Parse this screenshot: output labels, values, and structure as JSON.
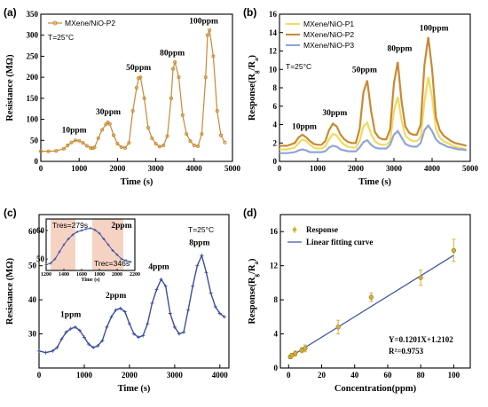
{
  "chart_data": [
    {
      "id": "a",
      "panel_label": "(a)",
      "type": "line",
      "xlabel": "Time (s)",
      "ylabel": "Resistance (MΩ)",
      "xlim": [
        0,
        5000
      ],
      "ylim": [
        0,
        350
      ],
      "xticks": [
        "0",
        "1000",
        "2000",
        "3000",
        "4000",
        "5000"
      ],
      "yticks": [
        "0",
        "50",
        "100",
        "150",
        "200",
        "250",
        "300",
        "350"
      ],
      "temperature": "T=25°C",
      "legend_position": "top-left",
      "series": [
        {
          "name": "MXene/NiO-P2",
          "color": "#c98a33",
          "marker": "circle-open",
          "x": [
            0,
            200,
            400,
            600,
            700,
            800,
            900,
            1000,
            1100,
            1200,
            1300,
            1350,
            1400,
            1500,
            1600,
            1700,
            1750,
            1800,
            1900,
            2000,
            2100,
            2200,
            2300,
            2400,
            2500,
            2550,
            2600,
            2700,
            2800,
            2900,
            3000,
            3100,
            3200,
            3300,
            3400,
            3450,
            3500,
            3600,
            3700,
            3800,
            3900,
            4000,
            4100,
            4200,
            4300,
            4350,
            4400,
            4500,
            4600,
            4700,
            4800
          ],
          "y": [
            24,
            24,
            25,
            30,
            38,
            45,
            50,
            49,
            44,
            37,
            32,
            31,
            33,
            55,
            75,
            88,
            93,
            89,
            62,
            42,
            34,
            32,
            44,
            120,
            175,
            198,
            200,
            150,
            80,
            55,
            42,
            35,
            38,
            60,
            150,
            220,
            236,
            200,
            110,
            65,
            48,
            38,
            36,
            65,
            200,
            300,
            312,
            250,
            120,
            62,
            45
          ]
        }
      ],
      "annotations": [
        "10ppm",
        "30ppm",
        "50ppm",
        "80ppm",
        "100ppm"
      ]
    },
    {
      "id": "b",
      "panel_label": "(b)",
      "type": "line",
      "xlabel": "Time (s)",
      "ylabel": "Response(Rg/Ra)",
      "xlim": [
        0,
        5000
      ],
      "ylim": [
        0,
        16
      ],
      "xticks": [
        "0",
        "1000",
        "2000",
        "3000",
        "4000",
        "5000"
      ],
      "yticks": [
        "0",
        "2",
        "4",
        "6",
        "8",
        "10",
        "12",
        "14",
        "16"
      ],
      "temperature": "T=25°C",
      "legend_position": "top-left",
      "series": [
        {
          "name": "MXene/NiO-P1",
          "color": "#f2da5f",
          "x": [
            0,
            200,
            400,
            500,
            600,
            700,
            800,
            900,
            1000,
            1100,
            1200,
            1300,
            1400,
            1500,
            1600,
            1700,
            1800,
            1900,
            2000,
            2100,
            2200,
            2300,
            2400,
            2500,
            2600,
            2700,
            2800,
            2900,
            3000,
            3100,
            3200,
            3300,
            3400,
            3500,
            3600,
            3700,
            3800,
            3900,
            4000,
            4100,
            4200,
            4300,
            4400,
            4500,
            4600,
            4700,
            4800,
            4900
          ],
          "y": [
            1.3,
            1.3,
            1.5,
            2.0,
            2.4,
            2.2,
            1.8,
            1.5,
            1.4,
            1.4,
            1.6,
            2.4,
            3.0,
            2.8,
            2.2,
            1.8,
            1.6,
            1.5,
            1.5,
            2.2,
            3.8,
            4.2,
            3.0,
            2.2,
            1.9,
            1.8,
            1.8,
            2.2,
            5.5,
            7.0,
            4.5,
            2.8,
            2.4,
            2.2,
            2.2,
            2.6,
            6.5,
            9.2,
            7.0,
            3.5,
            2.6,
            2.2,
            2.0,
            1.8,
            1.6,
            1.5,
            1.4,
            1.3
          ]
        },
        {
          "name": "MXene/NiO-P2",
          "color": "#c98a33",
          "x": [
            0,
            200,
            400,
            500,
            600,
            700,
            800,
            900,
            1000,
            1100,
            1200,
            1300,
            1400,
            1500,
            1600,
            1700,
            1800,
            1900,
            2000,
            2100,
            2200,
            2300,
            2400,
            2500,
            2600,
            2700,
            2800,
            2900,
            3000,
            3100,
            3200,
            3300,
            3400,
            3500,
            3600,
            3700,
            3800,
            3900,
            4000,
            4100,
            4200,
            4300,
            4400,
            4500,
            4600,
            4700,
            4800,
            4900
          ],
          "y": [
            1.7,
            1.7,
            2.0,
            2.6,
            2.9,
            2.6,
            2.2,
            1.9,
            1.8,
            1.8,
            2.2,
            3.4,
            4.1,
            3.8,
            2.9,
            2.4,
            2.1,
            2.0,
            2.0,
            3.5,
            7.5,
            8.8,
            5.5,
            3.2,
            2.6,
            2.4,
            2.4,
            3.5,
            8.5,
            10.8,
            6.5,
            3.8,
            3.1,
            2.9,
            2.9,
            4.0,
            10.5,
            13.5,
            10.0,
            4.8,
            3.4,
            2.8,
            2.5,
            2.2,
            2.0,
            1.9,
            1.8,
            1.7
          ]
        },
        {
          "name": "MXene/NiO-P3",
          "color": "#8fa6d6",
          "x": [
            0,
            200,
            400,
            500,
            600,
            700,
            800,
            900,
            1000,
            1100,
            1200,
            1300,
            1400,
            1500,
            1600,
            1700,
            1800,
            1900,
            2000,
            2100,
            2200,
            2300,
            2400,
            2500,
            2600,
            2700,
            2800,
            2900,
            3000,
            3100,
            3200,
            3300,
            3400,
            3500,
            3600,
            3700,
            3800,
            3900,
            4000,
            4100,
            4200,
            4300,
            4400,
            4500,
            4600,
            4700,
            4800,
            4900
          ],
          "y": [
            0.9,
            0.9,
            1.0,
            1.2,
            1.3,
            1.2,
            1.0,
            1.0,
            1.0,
            1.0,
            1.1,
            1.5,
            1.7,
            1.6,
            1.3,
            1.2,
            1.1,
            1.1,
            1.1,
            1.5,
            2.1,
            2.3,
            1.8,
            1.5,
            1.4,
            1.4,
            1.4,
            1.8,
            2.9,
            3.3,
            2.6,
            1.9,
            1.7,
            1.6,
            1.6,
            2.0,
            3.4,
            3.9,
            3.3,
            2.4,
            2.0,
            1.8,
            1.6,
            1.5,
            1.4,
            1.3,
            1.3,
            1.2
          ]
        }
      ],
      "annotations": [
        "10ppm",
        "30ppm",
        "50ppm",
        "80ppm",
        "100ppm"
      ]
    },
    {
      "id": "c",
      "panel_label": "(c)",
      "type": "line",
      "xlabel": "Time (s)",
      "ylabel": "Resistance (MΩ)",
      "xlim": [
        0,
        4200
      ],
      "ylim": [
        20,
        65
      ],
      "xticks": [
        "0",
        "1000",
        "2000",
        "3000",
        "4000"
      ],
      "yticks": [
        "30",
        "40",
        "50",
        "60"
      ],
      "temperature": "T=25°C",
      "series": [
        {
          "name": "",
          "color": "#3b4ea0",
          "marker": "plus",
          "x": [
            0,
            150,
            300,
            400,
            500,
            600,
            700,
            800,
            900,
            1000,
            1100,
            1200,
            1300,
            1400,
            1500,
            1600,
            1700,
            1800,
            1900,
            2000,
            2100,
            2200,
            2300,
            2400,
            2500,
            2600,
            2700,
            2800,
            2900,
            3000,
            3100,
            3200,
            3300,
            3400,
            3500,
            3600,
            3700,
            3800,
            3900,
            4000,
            4100
          ],
          "y": [
            25,
            24.5,
            25,
            26,
            28.5,
            30.5,
            31.5,
            32,
            31,
            29,
            27,
            26,
            26.5,
            28,
            32,
            35,
            37,
            37.5,
            36.5,
            33,
            30,
            29,
            29.5,
            33,
            39,
            43,
            46,
            44,
            36,
            32,
            30,
            30.5,
            37,
            44,
            50,
            53,
            48,
            42,
            38,
            36,
            35
          ]
        }
      ],
      "annotations": [
        "1ppm",
        "2ppm",
        "4ppm",
        "8ppm"
      ],
      "inset": {
        "xlim": [
          1200,
          2200
        ],
        "ylim": [
          46,
          64
        ],
        "xticks": [
          "1200",
          "1400",
          "1600",
          "1800",
          "2000",
          "2200"
        ],
        "yticks": [
          "50",
          "60"
        ],
        "xlabel": "Time (s)",
        "label": "2ppm",
        "tres": "Tres=279s",
        "trec": "Trec=346s",
        "shade_color": "#f6d2c2",
        "x": [
          1200,
          1250,
          1300,
          1350,
          1400,
          1450,
          1500,
          1550,
          1600,
          1650,
          1700,
          1750,
          1800,
          1850,
          1900,
          1950,
          2000,
          2050,
          2100,
          2150
        ],
        "y": [
          48,
          48.5,
          50,
          52.5,
          55,
          57,
          58.5,
          59.5,
          60,
          60.5,
          60.8,
          60.2,
          59,
          57,
          55,
          53,
          51.5,
          50,
          49.5,
          49
        ]
      }
    },
    {
      "id": "d",
      "panel_label": "(d)",
      "type": "scatter",
      "xlabel": "Concentration(ppm)",
      "ylabel": "Response(Rg/Ra)",
      "xlim": [
        -5,
        110
      ],
      "ylim": [
        0,
        18
      ],
      "xticks": [
        "0",
        "20",
        "40",
        "60",
        "80",
        "100"
      ],
      "yticks": [
        "0",
        "4",
        "8",
        "12",
        "16"
      ],
      "legend_position": "top-left",
      "series": [
        {
          "name": "Response",
          "color": "#d4b23a",
          "x": [
            1,
            2,
            4,
            8,
            10,
            30,
            50,
            80,
            100
          ],
          "y": [
            1.3,
            1.5,
            1.7,
            2.1,
            2.3,
            4.8,
            8.3,
            10.6,
            13.8
          ],
          "error": [
            0.2,
            0.2,
            0.3,
            0.3,
            0.4,
            0.8,
            0.5,
            0.9,
            1.3
          ]
        },
        {
          "name": "Linear fitting curve",
          "color": "#3b4ea0",
          "type": "line",
          "x": [
            0,
            100
          ],
          "y": [
            1.2102,
            13.2202
          ]
        }
      ],
      "equation": "Y=0.1201X+1.2102",
      "r2": "R²=0.9753"
    }
  ]
}
